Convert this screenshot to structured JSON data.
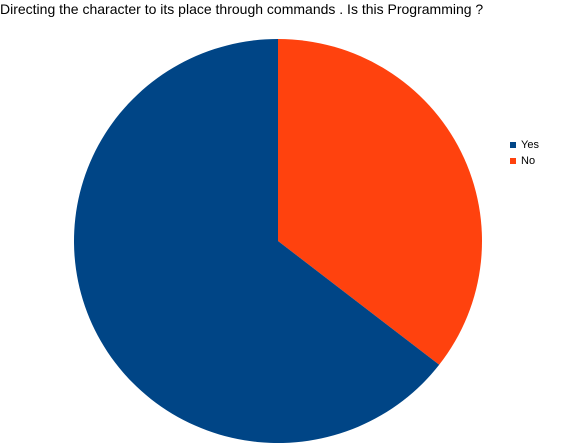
{
  "chart_data": {
    "type": "pie",
    "title": "Directing the character to its place through commands . Is this Programming ?",
    "categories": [
      "Yes",
      "No"
    ],
    "values": [
      64.5,
      35.5
    ],
    "colors": [
      "#004586",
      "#ff420e"
    ],
    "legend_position": "right"
  }
}
